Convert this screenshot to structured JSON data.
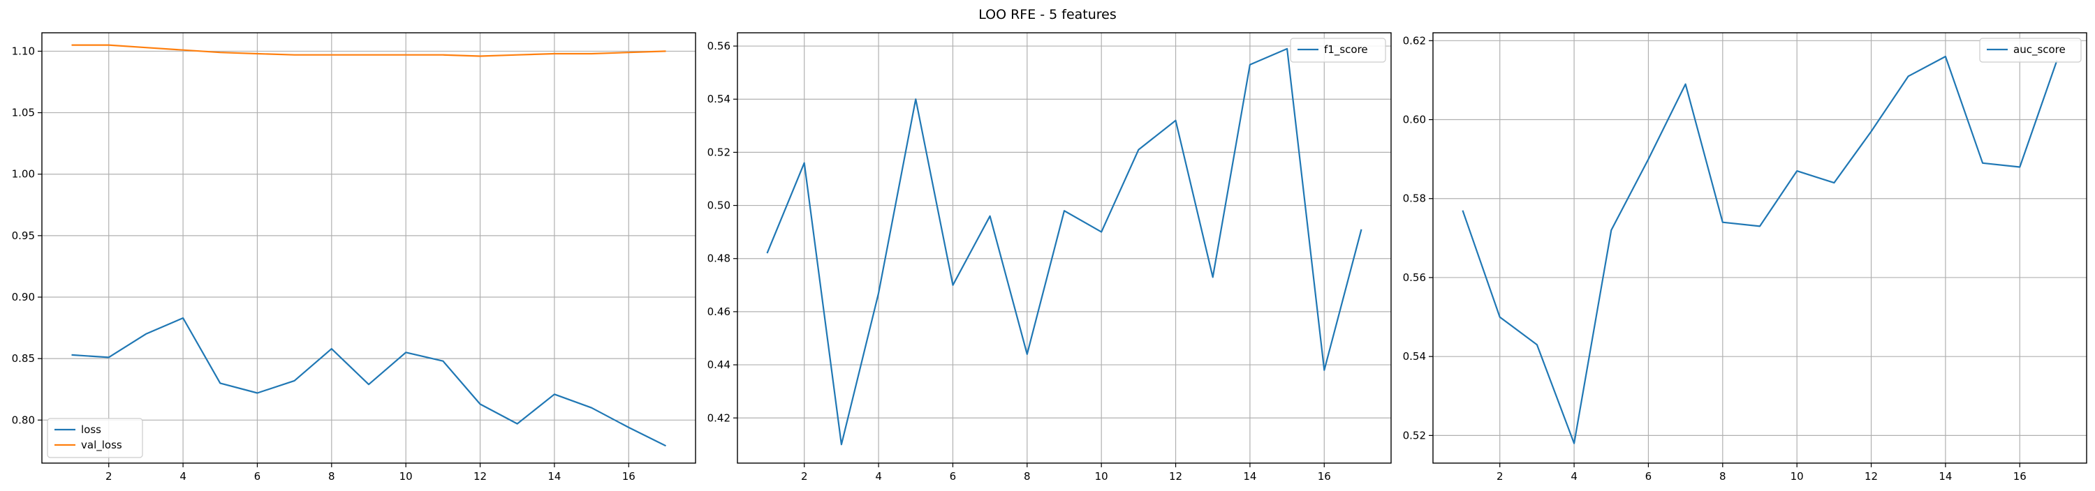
{
  "figure": {
    "title": "LOO RFE - 5 features"
  },
  "colors": {
    "blue": "#1f77b4",
    "orange": "#ff7f0e",
    "grid": "#b0b0b0",
    "frame": "#000000"
  },
  "chart_data": [
    {
      "type": "line",
      "grid": true,
      "legend": "lower-left",
      "xlim": [
        0.2,
        17.8
      ],
      "ylim": [
        0.765,
        1.115
      ],
      "xticks": [
        2,
        4,
        6,
        8,
        10,
        12,
        14,
        16
      ],
      "yticks": [
        0.8,
        0.85,
        0.9,
        0.95,
        1.0,
        1.05,
        1.1
      ],
      "ytick_decimals": 2,
      "x": [
        1,
        2,
        3,
        4,
        5,
        6,
        7,
        8,
        9,
        10,
        11,
        12,
        13,
        14,
        15,
        16,
        17
      ],
      "series": [
        {
          "name": "loss",
          "color": "blue",
          "values": [
            0.853,
            0.851,
            0.87,
            0.883,
            0.83,
            0.822,
            0.832,
            0.858,
            0.829,
            0.855,
            0.848,
            0.813,
            0.797,
            0.821,
            0.81,
            0.794,
            0.779
          ]
        },
        {
          "name": "val_loss",
          "color": "orange",
          "values": [
            1.105,
            1.105,
            1.103,
            1.101,
            1.099,
            1.098,
            1.097,
            1.097,
            1.097,
            1.097,
            1.097,
            1.096,
            1.097,
            1.098,
            1.098,
            1.099,
            1.1
          ]
        }
      ]
    },
    {
      "type": "line",
      "grid": true,
      "legend": "upper-right",
      "xlim": [
        0.2,
        17.8
      ],
      "ylim": [
        0.403,
        0.565
      ],
      "xticks": [
        2,
        4,
        6,
        8,
        10,
        12,
        14,
        16
      ],
      "yticks": [
        0.42,
        0.44,
        0.46,
        0.48,
        0.5,
        0.52,
        0.54,
        0.56
      ],
      "ytick_decimals": 2,
      "x": [
        1,
        2,
        3,
        4,
        5,
        6,
        7,
        8,
        9,
        10,
        11,
        12,
        13,
        14,
        15,
        16,
        17
      ],
      "series": [
        {
          "name": "f1_score",
          "color": "blue",
          "values": [
            0.482,
            0.516,
            0.41,
            0.467,
            0.54,
            0.47,
            0.496,
            0.444,
            0.498,
            0.49,
            0.521,
            0.532,
            0.473,
            0.553,
            0.559,
            0.438,
            0.491
          ]
        }
      ]
    },
    {
      "type": "line",
      "grid": true,
      "legend": "upper-right",
      "xlim": [
        0.2,
        17.8
      ],
      "ylim": [
        0.513,
        0.622
      ],
      "xticks": [
        2,
        4,
        6,
        8,
        10,
        12,
        14,
        16
      ],
      "yticks": [
        0.52,
        0.54,
        0.56,
        0.58,
        0.6,
        0.62
      ],
      "ytick_decimals": 2,
      "x": [
        1,
        2,
        3,
        4,
        5,
        6,
        7,
        8,
        9,
        10,
        11,
        12,
        13,
        14,
        15,
        16,
        17
      ],
      "series": [
        {
          "name": "auc_score",
          "color": "blue",
          "values": [
            0.577,
            0.55,
            0.543,
            0.518,
            0.572,
            0.59,
            0.609,
            0.574,
            0.573,
            0.587,
            0.584,
            0.597,
            0.611,
            0.616,
            0.589,
            0.588,
            0.615
          ]
        }
      ]
    }
  ]
}
